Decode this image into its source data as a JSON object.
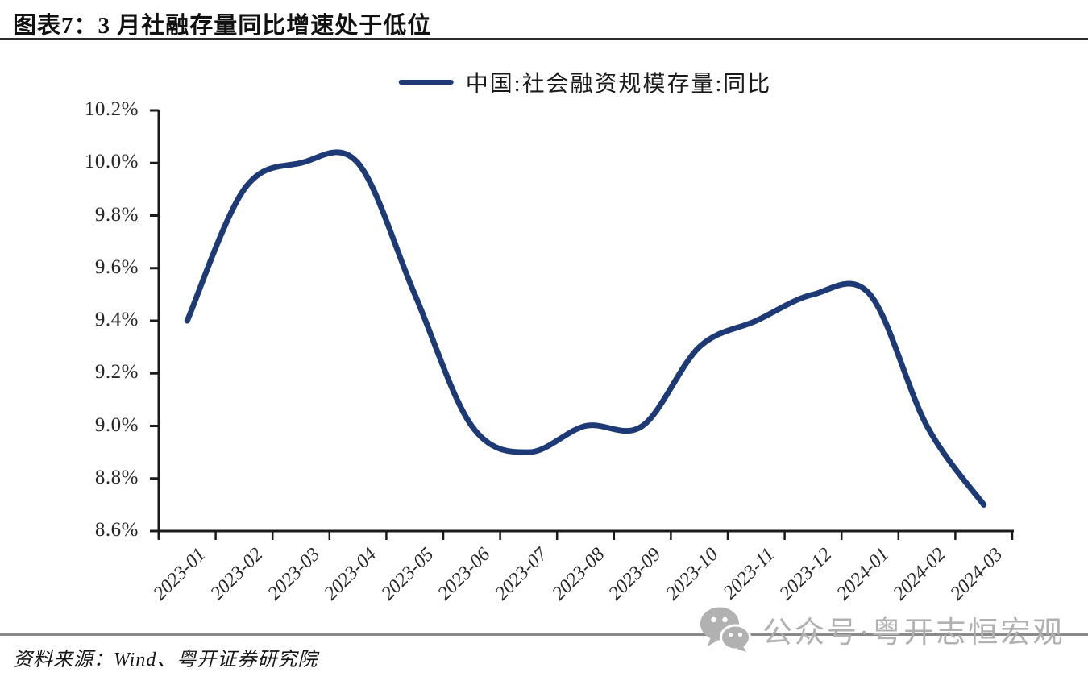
{
  "header": {
    "title": "图表7：3 月社融存量同比增速处于低位"
  },
  "legend": {
    "series_label": "中国:社会融资规模存量:同比"
  },
  "source": {
    "text": "资料来源：Wind、粤开证券研究院"
  },
  "watermark": {
    "icon": "wechat-icon",
    "text": "公众号·粤开志恒宏观"
  },
  "colors": {
    "line": "#1e3a76",
    "axis": "#1a1a1a",
    "tick_text": "#262626",
    "title_text": "#111111",
    "watermark_gray": "#b1b1b1",
    "rule_gray": "#8a8a8a"
  },
  "chart_data": {
    "type": "line",
    "title": "图表7：3 月社融存量同比增速处于低位",
    "categories": [
      "2023-01",
      "2023-02",
      "2023-03",
      "2023-04",
      "2023-05",
      "2023-06",
      "2023-07",
      "2023-08",
      "2023-09",
      "2023-10",
      "2023-11",
      "2023-12",
      "2024-01",
      "2024-02",
      "2024-03"
    ],
    "series": [
      {
        "name": "中国:社会融资规模存量:同比",
        "values": [
          9.4,
          9.9,
          10.0,
          10.0,
          9.5,
          9.0,
          8.9,
          9.0,
          9.0,
          9.3,
          9.4,
          9.5,
          9.5,
          9.0,
          8.7
        ]
      }
    ],
    "xlabel": "",
    "ylabel": "",
    "ylim": [
      8.6,
      10.2
    ],
    "y_tick_step": 0.2,
    "y_tick_labels": [
      "10.2%",
      "10.0%",
      "9.8%",
      "9.6%",
      "9.4%",
      "9.2%",
      "9.0%",
      "8.8%",
      "8.6%"
    ],
    "grid": false,
    "smoothed": true,
    "legend_position": "top-center",
    "line_color": "#1e3a76"
  }
}
